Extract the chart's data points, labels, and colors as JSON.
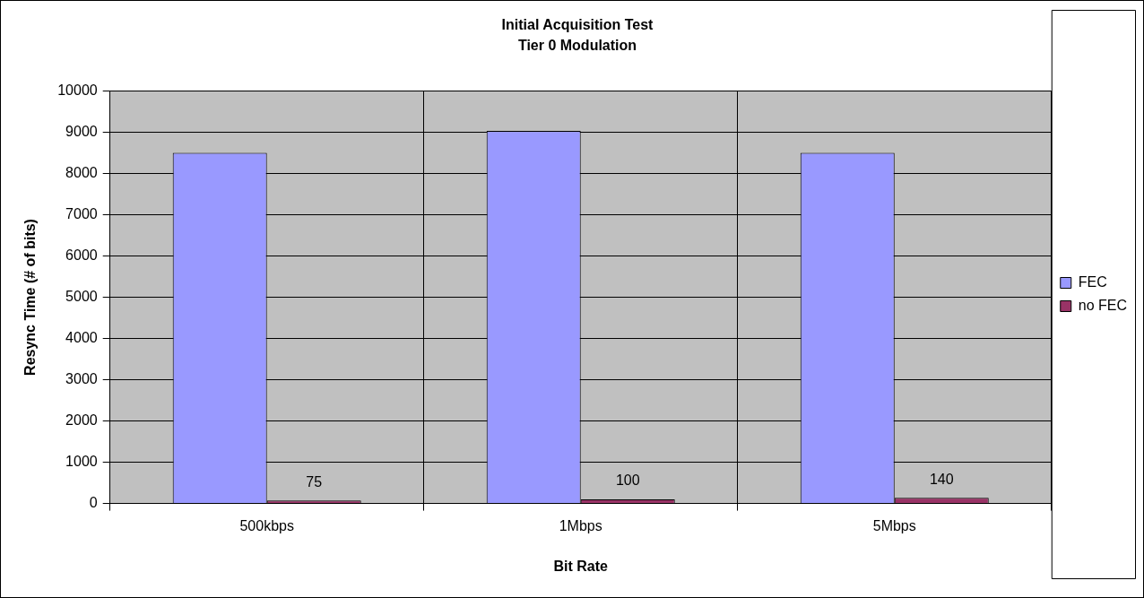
{
  "chart_data": {
    "type": "bar",
    "title": "Initial Acquisition Test",
    "subtitle": "Tier 0 Modulation",
    "xlabel": "Bit Rate",
    "ylabel": "Resync Time (# of bits)",
    "categories": [
      "500kbps",
      "1Mbps",
      "5Mbps"
    ],
    "series": [
      {
        "name": "FEC",
        "color": "#9999ff",
        "values": [
          8500,
          9030,
          8500
        ]
      },
      {
        "name": "no FEC",
        "color": "#993366",
        "values": [
          75,
          100,
          140
        ],
        "value_labels": [
          "75",
          "100",
          "140"
        ]
      }
    ],
    "ylim": [
      0,
      10000
    ],
    "yticks": [
      0,
      1000,
      2000,
      3000,
      4000,
      5000,
      6000,
      7000,
      8000,
      9000,
      10000
    ],
    "grid": true,
    "legend": "right"
  }
}
